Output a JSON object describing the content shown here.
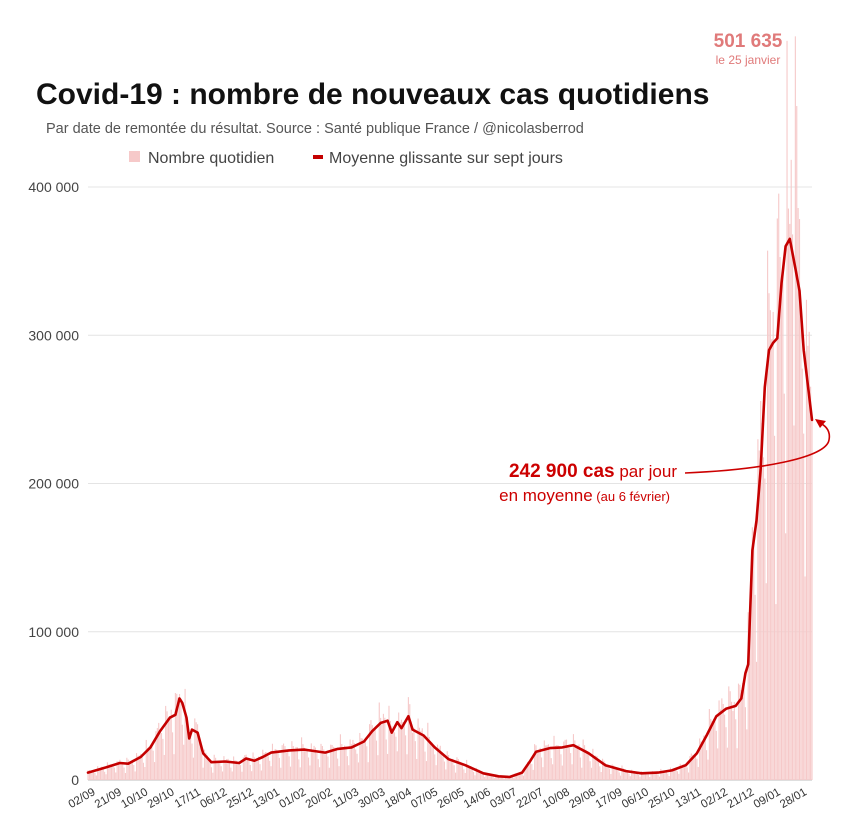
{
  "chart_data": {
    "type": "bar+line",
    "title": "Covid-19 : nombre de nouveaux cas quotidiens",
    "subtitle": "Par date de remontée du résultat. Source : Santé publique France / @nicolasberrod",
    "legend": [
      "Nombre quotidien",
      "Moyenne glissante sur sept jours"
    ],
    "ylim": [
      0,
      420000
    ],
    "yticks": [
      {
        "value": 0,
        "label": "0"
      },
      {
        "value": 100000,
        "label": "100 000"
      },
      {
        "value": 200000,
        "label": "200 000"
      },
      {
        "value": 300000,
        "label": "300 000"
      },
      {
        "value": 400000,
        "label": "400 000"
      }
    ],
    "x_start": "2020-09-02",
    "x_end": "2022-02-06",
    "xticks": [
      "02/09",
      "21/09",
      "10/10",
      "29/10",
      "17/11",
      "06/12",
      "25/12",
      "13/01",
      "01/02",
      "20/02",
      "11/03",
      "30/03",
      "18/04",
      "07/05",
      "26/05",
      "14/06",
      "03/07",
      "22/07",
      "10/08",
      "29/08",
      "17/09",
      "06/10",
      "25/10",
      "13/11",
      "02/12",
      "21/12",
      "09/01",
      "28/01"
    ],
    "series": [
      {
        "name": "Moyenne glissante sur sept jours",
        "points": [
          {
            "date": "2020-09-02",
            "value": 5000
          },
          {
            "date": "2020-09-15",
            "value": 8500
          },
          {
            "date": "2020-09-25",
            "value": 11500
          },
          {
            "date": "2020-10-01",
            "value": 11000
          },
          {
            "date": "2020-10-10",
            "value": 15500
          },
          {
            "date": "2020-10-17",
            "value": 22000
          },
          {
            "date": "2020-10-24",
            "value": 33000
          },
          {
            "date": "2020-10-31",
            "value": 42000
          },
          {
            "date": "2020-11-04",
            "value": 44000
          },
          {
            "date": "2020-11-07",
            "value": 55000
          },
          {
            "date": "2020-11-09",
            "value": 52000
          },
          {
            "date": "2020-11-12",
            "value": 42000
          },
          {
            "date": "2020-11-14",
            "value": 28000
          },
          {
            "date": "2020-11-16",
            "value": 34000
          },
          {
            "date": "2020-11-20",
            "value": 32000
          },
          {
            "date": "2020-11-24",
            "value": 18000
          },
          {
            "date": "2020-11-30",
            "value": 12000
          },
          {
            "date": "2020-12-10",
            "value": 12500
          },
          {
            "date": "2020-12-20",
            "value": 11500
          },
          {
            "date": "2020-12-25",
            "value": 14500
          },
          {
            "date": "2020-12-31",
            "value": 13000
          },
          {
            "date": "2021-01-06",
            "value": 15500
          },
          {
            "date": "2021-01-12",
            "value": 18500
          },
          {
            "date": "2021-01-25",
            "value": 20000
          },
          {
            "date": "2021-02-05",
            "value": 20500
          },
          {
            "date": "2021-02-20",
            "value": 18500
          },
          {
            "date": "2021-03-01",
            "value": 21000
          },
          {
            "date": "2021-03-11",
            "value": 22000
          },
          {
            "date": "2021-03-20",
            "value": 26000
          },
          {
            "date": "2021-03-26",
            "value": 33000
          },
          {
            "date": "2021-04-01",
            "value": 38500
          },
          {
            "date": "2021-04-06",
            "value": 40000
          },
          {
            "date": "2021-04-09",
            "value": 32000
          },
          {
            "date": "2021-04-13",
            "value": 39000
          },
          {
            "date": "2021-04-16",
            "value": 35000
          },
          {
            "date": "2021-04-21",
            "value": 43000
          },
          {
            "date": "2021-04-24",
            "value": 34000
          },
          {
            "date": "2021-05-02",
            "value": 30000
          },
          {
            "date": "2021-05-10",
            "value": 22000
          },
          {
            "date": "2021-05-20",
            "value": 14000
          },
          {
            "date": "2021-06-01",
            "value": 10000
          },
          {
            "date": "2021-06-14",
            "value": 4500
          },
          {
            "date": "2021-06-25",
            "value": 2500
          },
          {
            "date": "2021-07-03",
            "value": 2000
          },
          {
            "date": "2021-07-12",
            "value": 5000
          },
          {
            "date": "2021-07-18",
            "value": 13000
          },
          {
            "date": "2021-07-22",
            "value": 19000
          },
          {
            "date": "2021-08-01",
            "value": 21500
          },
          {
            "date": "2021-08-10",
            "value": 22000
          },
          {
            "date": "2021-08-18",
            "value": 23500
          },
          {
            "date": "2021-08-29",
            "value": 18000
          },
          {
            "date": "2021-09-10",
            "value": 10000
          },
          {
            "date": "2021-09-25",
            "value": 6000
          },
          {
            "date": "2021-10-06",
            "value": 4500
          },
          {
            "date": "2021-10-18",
            "value": 5000
          },
          {
            "date": "2021-10-28",
            "value": 6500
          },
          {
            "date": "2021-11-07",
            "value": 10000
          },
          {
            "date": "2021-11-15",
            "value": 18000
          },
          {
            "date": "2021-11-22",
            "value": 30000
          },
          {
            "date": "2021-11-29",
            "value": 43000
          },
          {
            "date": "2021-12-06",
            "value": 48000
          },
          {
            "date": "2021-12-13",
            "value": 50000
          },
          {
            "date": "2021-12-17",
            "value": 55000
          },
          {
            "date": "2021-12-20",
            "value": 72000
          },
          {
            "date": "2021-12-22",
            "value": 78000
          },
          {
            "date": "2021-12-25",
            "value": 155000
          },
          {
            "date": "2021-12-28",
            "value": 175000
          },
          {
            "date": "2021-12-31",
            "value": 210000
          },
          {
            "date": "2022-01-03",
            "value": 265000
          },
          {
            "date": "2022-01-06",
            "value": 290000
          },
          {
            "date": "2022-01-09",
            "value": 295000
          },
          {
            "date": "2022-01-12",
            "value": 298000
          },
          {
            "date": "2022-01-15",
            "value": 335000
          },
          {
            "date": "2022-01-18",
            "value": 360000
          },
          {
            "date": "2022-01-21",
            "value": 365000
          },
          {
            "date": "2022-01-25",
            "value": 345000
          },
          {
            "date": "2022-01-28",
            "value": 330000
          },
          {
            "date": "2022-01-31",
            "value": 290000
          },
          {
            "date": "2022-02-06",
            "value": 242900
          }
        ]
      }
    ],
    "daily_peak": {
      "value_label": "501 635",
      "date_label": "le 25 janvier",
      "value": 501635
    },
    "annotation": {
      "value": 242900,
      "bold": "242 900 cas",
      "rest": " par jour",
      "line2": "en moyenne",
      "line2_small": " (au 6 février)"
    },
    "colors": {
      "line": "#c40000",
      "bars": "#f6c9c9",
      "grid": "#e4e4e4",
      "peak": "#e07a7a",
      "annotation": "#cc0000"
    }
  }
}
